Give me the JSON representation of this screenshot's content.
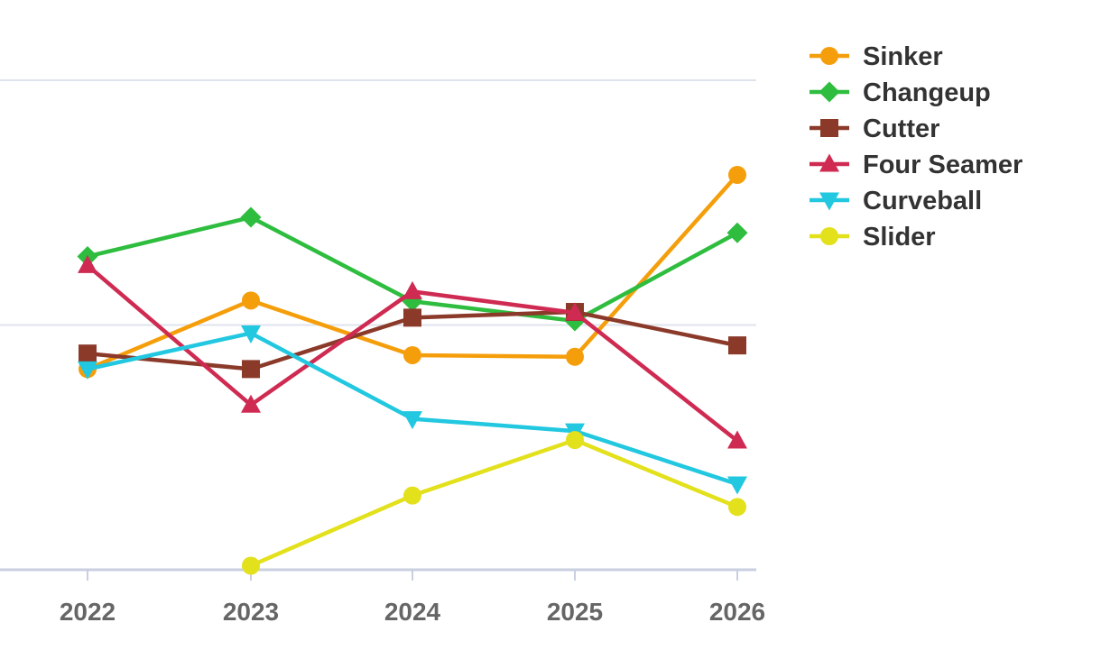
{
  "chart_data": {
    "type": "line",
    "title": "",
    "xlabel": "",
    "ylabel": "",
    "categories": [
      "2022",
      "2023",
      "2024",
      "2025",
      "2026"
    ],
    "ylim": [
      0,
      6
    ],
    "grid": true,
    "legend_position": "top-right",
    "series": [
      {
        "name": "Sinker",
        "color": "#f59e0b",
        "marker": "circle",
        "values": [
          2.46,
          3.3,
          2.63,
          2.61,
          4.84
        ]
      },
      {
        "name": "Changeup",
        "color": "#2ebd3e",
        "marker": "diamond",
        "values": [
          3.84,
          4.32,
          3.29,
          3.05,
          4.13
        ]
      },
      {
        "name": "Cutter",
        "color": "#8b3a2a",
        "marker": "square",
        "values": [
          2.65,
          2.46,
          3.09,
          3.16,
          2.75
        ]
      },
      {
        "name": "Four Seamer",
        "color": "#cf2b52",
        "marker": "triangle-up",
        "values": [
          3.73,
          2.02,
          3.41,
          3.15,
          1.58
        ]
      },
      {
        "name": "Curveball",
        "color": "#22c7e0",
        "marker": "triangle-down",
        "values": [
          2.46,
          2.9,
          1.85,
          1.7,
          1.05
        ]
      },
      {
        "name": "Slider",
        "color": "#e3e01c",
        "marker": "circle",
        "values": [
          null,
          0.05,
          0.91,
          1.59,
          0.77
        ]
      }
    ]
  }
}
